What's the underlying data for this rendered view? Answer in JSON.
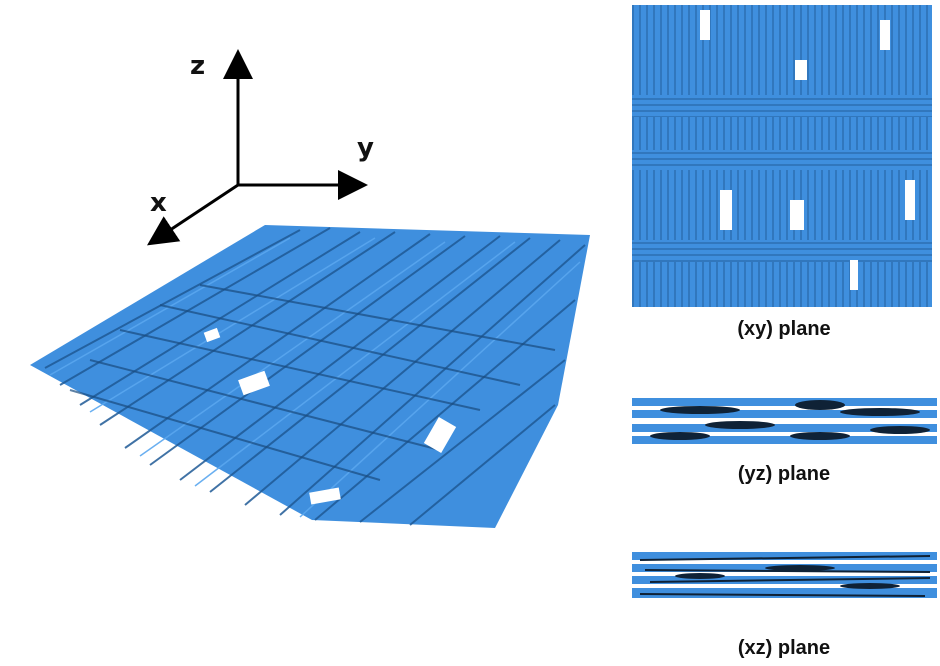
{
  "axes": {
    "z": "z",
    "y": "y",
    "x": "x"
  },
  "captions": {
    "xy": "(xy) plane",
    "yz": "(yz) plane",
    "xz": "(xz) plane"
  },
  "colors": {
    "fiber": "#3f8fde",
    "fiber_dark": "#1b4f85",
    "axis": "#000000"
  }
}
